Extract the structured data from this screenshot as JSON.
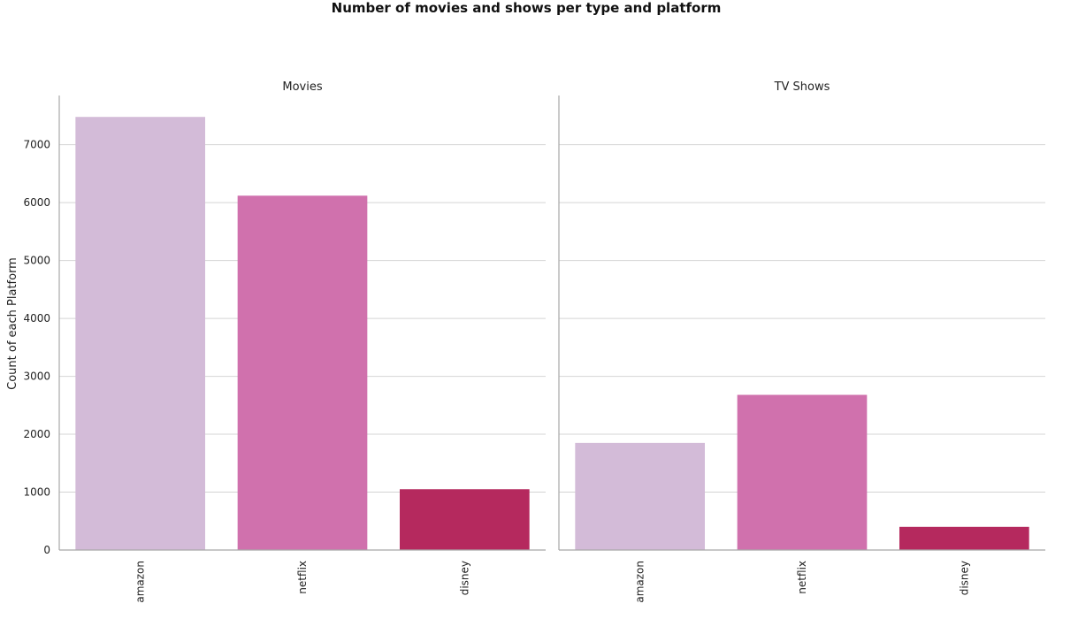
{
  "chart_data": {
    "type": "bar",
    "title": "Number of movies and shows per type and platform",
    "ylabel": "Count of each Platform",
    "ylim": [
      0,
      7850
    ],
    "yticks": [
      0,
      1000,
      2000,
      3000,
      4000,
      5000,
      6000,
      7000
    ],
    "grid": true,
    "categories": [
      "amazon",
      "netflix",
      "disney"
    ],
    "colors": [
      "#d3bbd8",
      "#d071ad",
      "#b5295e"
    ],
    "panels": [
      {
        "title": "Movies",
        "values": [
          7480,
          6120,
          1050
        ]
      },
      {
        "title": "TV Shows",
        "values": [
          1850,
          2680,
          400
        ]
      }
    ]
  }
}
